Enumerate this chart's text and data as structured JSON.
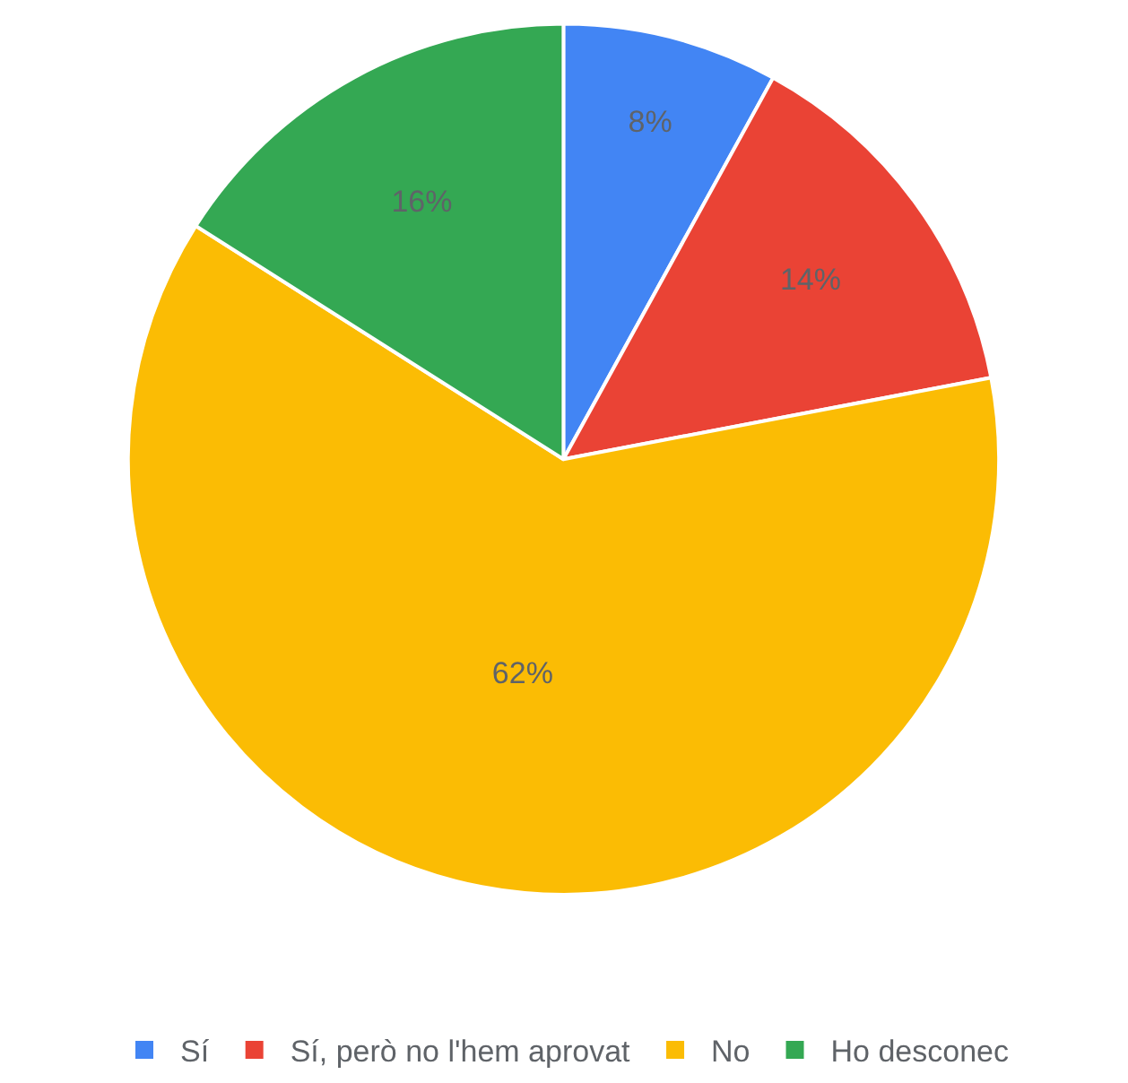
{
  "chart_data": {
    "type": "pie",
    "categories": [
      "Sí",
      "Sí, però no l'hem aprovat",
      "No",
      "Ho desconec"
    ],
    "values": [
      8,
      14,
      62,
      16
    ],
    "value_labels": [
      "8%",
      "14%",
      "62%",
      "16%"
    ],
    "colors": [
      "#4285f4",
      "#ea4335",
      "#fbbc04",
      "#34a853"
    ],
    "legend": "bottom"
  }
}
